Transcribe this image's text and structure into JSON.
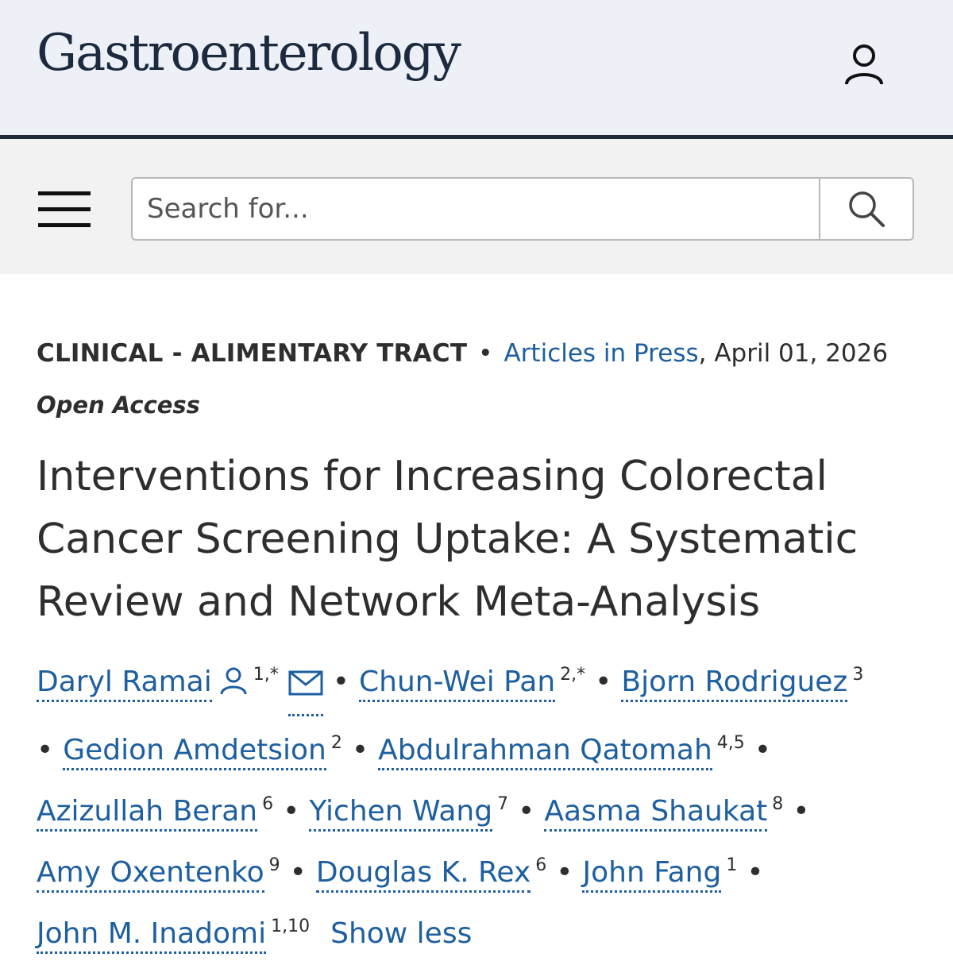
{
  "header": {
    "logo": "Gastroenterology",
    "user_icon": "user-icon"
  },
  "search": {
    "placeholder": "Search for...",
    "menu_icon": "hamburger-menu-icon",
    "search_icon": "search-icon"
  },
  "article": {
    "section": "CLINICAL - ALIMENTARY TRACT",
    "separator": "•",
    "issue_link": "Articles in Press",
    "date": ", April 01, 2026",
    "access": "Open Access",
    "title": "Interventions for Increasing Colorectal Cancer Screening Uptake: A Systematic Review and Network Meta-Analysis",
    "authors": [
      {
        "name": "Daryl Ramai",
        "sup": "1,*"
      },
      {
        "name": "Chun-Wei Pan",
        "sup": "2,*"
      },
      {
        "name": "Bjorn Rodriguez",
        "sup": "3"
      },
      {
        "name": "Gedion Amdetsion",
        "sup": "2"
      },
      {
        "name": "Abdulrahman Qatomah",
        "sup": "4,5"
      },
      {
        "name": "Azizullah Beran",
        "sup": "6"
      },
      {
        "name": "Yichen Wang",
        "sup": "7"
      },
      {
        "name": "Aasma Shaukat",
        "sup": "8"
      },
      {
        "name": "Amy Oxentenko",
        "sup": "9"
      },
      {
        "name": "Douglas K. Rex",
        "sup": "6"
      },
      {
        "name": "John Fang",
        "sup": "1"
      },
      {
        "name": "John M. Inadomi",
        "sup": "1,10"
      }
    ],
    "show_less": "Show less"
  }
}
